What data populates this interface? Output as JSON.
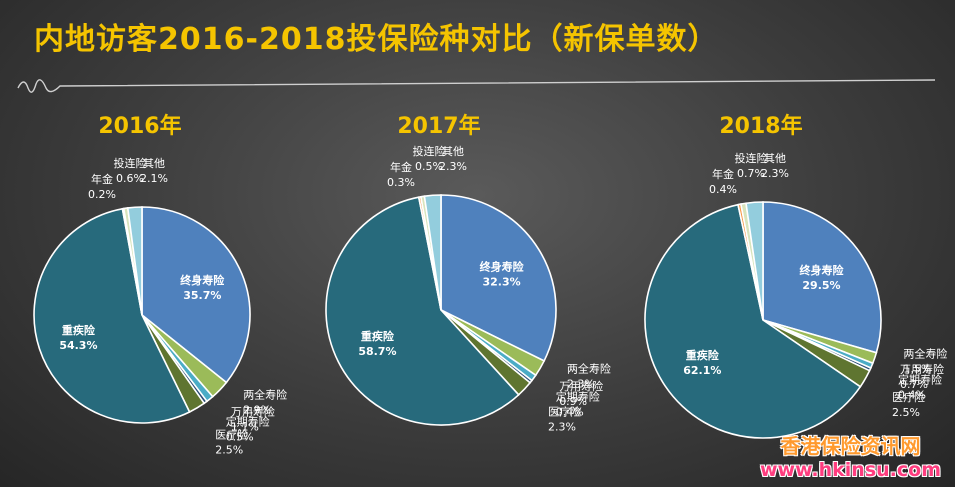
{
  "title": "内地访客2016-2018投保险种对比（新保单数）",
  "watermark": {
    "cn": "香港保险资讯网",
    "en": "www.hkinsu.com"
  },
  "chart_data": [
    {
      "type": "pie",
      "title": "2016年",
      "slices": [
        {
          "name": "终身寿险",
          "value": 35.7,
          "color": "#4f81bd"
        },
        {
          "name": "两全寿险",
          "value": 2.9,
          "color": "#9bbb59"
        },
        {
          "name": "万用寿险",
          "value": 1.1,
          "color": "#4bacc6"
        },
        {
          "name": "定期寿险",
          "value": 0.5,
          "color": "#2c4d75"
        },
        {
          "name": "医疗险",
          "value": 2.5,
          "color": "#5f7530"
        },
        {
          "name": "重疾险",
          "value": 54.3,
          "color": "#276a7c"
        },
        {
          "name": "年金",
          "value": 0.2,
          "color": "#f79646"
        },
        {
          "name": "投连险",
          "value": 0.6,
          "color": "#d8e4bc"
        },
        {
          "name": "其他",
          "value": 2.1,
          "color": "#93cddd"
        }
      ]
    },
    {
      "type": "pie",
      "title": "2017年",
      "slices": [
        {
          "name": "终身寿险",
          "value": 32.3,
          "color": "#4f81bd"
        },
        {
          "name": "两全寿险",
          "value": 2.3,
          "color": "#9bbb59"
        },
        {
          "name": "万用寿险",
          "value": 0.9,
          "color": "#4bacc6"
        },
        {
          "name": "定期寿险",
          "value": 0.4,
          "color": "#2c4d75"
        },
        {
          "name": "医疗险",
          "value": 2.3,
          "color": "#5f7530"
        },
        {
          "name": "重疾险",
          "value": 58.7,
          "color": "#276a7c"
        },
        {
          "name": "年金",
          "value": 0.3,
          "color": "#f79646"
        },
        {
          "name": "投连险",
          "value": 0.5,
          "color": "#d8e4bc"
        },
        {
          "name": "其他",
          "value": 2.3,
          "color": "#93cddd"
        }
      ]
    },
    {
      "type": "pie",
      "title": "2018年",
      "slices": [
        {
          "name": "终身寿险",
          "value": 29.5,
          "color": "#4f81bd"
        },
        {
          "name": "两全寿险",
          "value": 1.5,
          "color": "#9bbb59"
        },
        {
          "name": "万用寿险",
          "value": 0.7,
          "color": "#4bacc6"
        },
        {
          "name": "定期寿险",
          "value": 0.4,
          "color": "#2c4d75"
        },
        {
          "name": "医疗险",
          "value": 2.5,
          "color": "#5f7530"
        },
        {
          "name": "重疾险",
          "value": 62.1,
          "color": "#276a7c"
        },
        {
          "name": "年金",
          "value": 0.4,
          "color": "#f79646"
        },
        {
          "name": "投连险",
          "value": 0.7,
          "color": "#d8e4bc"
        },
        {
          "name": "其他",
          "value": 2.3,
          "color": "#93cddd"
        }
      ]
    }
  ]
}
